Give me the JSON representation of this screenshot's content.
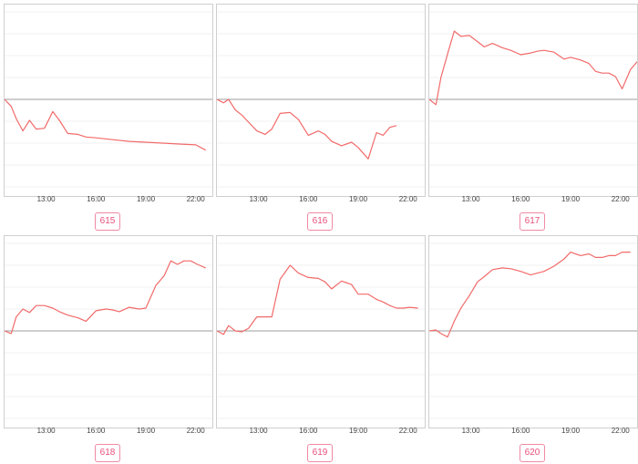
{
  "colors": {
    "line": "#f26a6a",
    "baseline": "#9e9e9e",
    "grid": "#f0f0f0",
    "badge": "#e8507a"
  },
  "chart_data": [
    {
      "type": "line",
      "id": "615",
      "x_ticks": [
        "13:00",
        "16:00",
        "19:00",
        "22:00"
      ],
      "xlim": [
        10.5,
        23.0
      ],
      "ylim": [
        -10,
        10
      ],
      "baseline": 0,
      "x": [
        10.5,
        10.9,
        11.2,
        11.6,
        12.0,
        12.4,
        12.9,
        13.4,
        13.8,
        14.3,
        14.9,
        15.4,
        16.0,
        17.0,
        18.0,
        19.0,
        20.0,
        21.0,
        22.0,
        22.6
      ],
      "y": [
        0,
        -0.8,
        -2.2,
        -3.6,
        -2.4,
        -3.4,
        -3.3,
        -1.4,
        -2.4,
        -3.9,
        -4.0,
        -4.3,
        -4.4,
        -4.6,
        -4.8,
        -4.9,
        -5.0,
        -5.1,
        -5.2,
        -5.8
      ]
    },
    {
      "type": "line",
      "id": "616",
      "x_ticks": [
        "13:00",
        "16:00",
        "19:00",
        "22:00"
      ],
      "xlim": [
        10.5,
        23.0
      ],
      "ylim": [
        -10,
        10
      ],
      "baseline": 0,
      "x": [
        10.5,
        10.9,
        11.2,
        11.6,
        12.0,
        12.4,
        12.9,
        13.4,
        13.8,
        14.3,
        14.9,
        15.4,
        16.0,
        16.6,
        17.0,
        17.4,
        18.0,
        18.6,
        19.0,
        19.6,
        20.1,
        20.5,
        20.9,
        21.3
      ],
      "y": [
        0,
        -0.4,
        0,
        -1.2,
        -1.8,
        -2.6,
        -3.6,
        -4.0,
        -3.4,
        -1.6,
        -1.5,
        -2.3,
        -4.1,
        -3.6,
        -4.0,
        -4.8,
        -5.3,
        -4.9,
        -5.5,
        -6.8,
        -3.8,
        -4.1,
        -3.2,
        -3.0
      ]
    },
    {
      "type": "line",
      "id": "617",
      "x_ticks": [
        "13:00",
        "16:00",
        "19:00",
        "22:00"
      ],
      "xlim": [
        10.5,
        23.0
      ],
      "ylim": [
        -10,
        10
      ],
      "baseline": 0,
      "x": [
        10.5,
        10.9,
        11.2,
        11.6,
        12.0,
        12.4,
        12.9,
        13.4,
        13.8,
        14.3,
        14.9,
        15.4,
        16.0,
        16.6,
        17.0,
        17.4,
        18.0,
        18.6,
        19.0,
        19.6,
        20.1,
        20.5,
        20.9,
        21.3,
        21.7,
        22.1,
        22.6,
        23.0
      ],
      "y": [
        0,
        -0.6,
        2.5,
        5.2,
        7.8,
        7.2,
        7.3,
        6.6,
        6.0,
        6.4,
        5.9,
        5.6,
        5.1,
        5.3,
        5.5,
        5.6,
        5.4,
        4.6,
        4.8,
        4.5,
        4.1,
        3.2,
        3.0,
        3.0,
        2.6,
        1.2,
        3.4,
        4.3
      ]
    },
    {
      "type": "line",
      "id": "618",
      "x_ticks": [
        "13:00",
        "16:00",
        "19:00",
        "22:00"
      ],
      "xlim": [
        10.5,
        23.0
      ],
      "ylim": [
        -10,
        10
      ],
      "baseline": 0,
      "x": [
        10.5,
        10.9,
        11.2,
        11.6,
        12.0,
        12.4,
        12.9,
        13.4,
        13.8,
        14.3,
        14.9,
        15.4,
        16.0,
        16.6,
        17.0,
        17.4,
        18.0,
        18.6,
        19.0,
        19.6,
        20.1,
        20.5,
        20.9,
        21.3,
        21.7,
        22.1,
        22.6
      ],
      "y": [
        0,
        -0.3,
        1.6,
        2.5,
        2.1,
        2.9,
        2.9,
        2.6,
        2.2,
        1.8,
        1.5,
        1.1,
        2.3,
        2.5,
        2.4,
        2.2,
        2.7,
        2.5,
        2.6,
        5.2,
        6.3,
        8.0,
        7.6,
        8.0,
        8.0,
        7.6,
        7.2
      ]
    },
    {
      "type": "line",
      "id": "619",
      "x_ticks": [
        "13:00",
        "16:00",
        "19:00",
        "22:00"
      ],
      "xlim": [
        10.5,
        23.0
      ],
      "ylim": [
        -10,
        10
      ],
      "baseline": 0,
      "x": [
        10.5,
        10.9,
        11.2,
        11.6,
        12.0,
        12.4,
        12.9,
        13.4,
        13.8,
        14.3,
        14.9,
        15.4,
        16.0,
        16.6,
        17.0,
        17.4,
        18.0,
        18.6,
        19.0,
        19.6,
        20.1,
        20.5,
        20.9,
        21.3,
        21.7,
        22.1,
        22.6
      ],
      "y": [
        0,
        -0.4,
        0.6,
        0,
        -0.1,
        0.3,
        1.6,
        1.6,
        1.6,
        5.9,
        7.5,
        6.6,
        6.1,
        6.0,
        5.6,
        4.8,
        5.7,
        5.3,
        4.2,
        4.2,
        3.6,
        3.3,
        2.9,
        2.6,
        2.6,
        2.7,
        2.6
      ]
    },
    {
      "type": "line",
      "id": "620",
      "x_ticks": [
        "13:00",
        "16:00",
        "19:00",
        "22:00"
      ],
      "xlim": [
        10.5,
        23.0
      ],
      "ylim": [
        -10,
        10
      ],
      "baseline": 0,
      "x": [
        10.5,
        10.9,
        11.2,
        11.6,
        12.0,
        12.4,
        12.9,
        13.4,
        13.8,
        14.3,
        14.9,
        15.4,
        16.0,
        16.6,
        17.0,
        17.4,
        18.0,
        18.6,
        19.0,
        19.6,
        20.1,
        20.5,
        20.9,
        21.3,
        21.7,
        22.1,
        22.6
      ],
      "y": [
        0,
        0.1,
        -0.3,
        -0.7,
        1.1,
        2.6,
        4.0,
        5.6,
        6.2,
        7.0,
        7.2,
        7.1,
        6.8,
        6.4,
        6.6,
        6.8,
        7.4,
        8.2,
        9.0,
        8.6,
        8.8,
        8.4,
        8.4,
        8.6,
        8.6,
        9.0,
        9.0
      ]
    }
  ]
}
